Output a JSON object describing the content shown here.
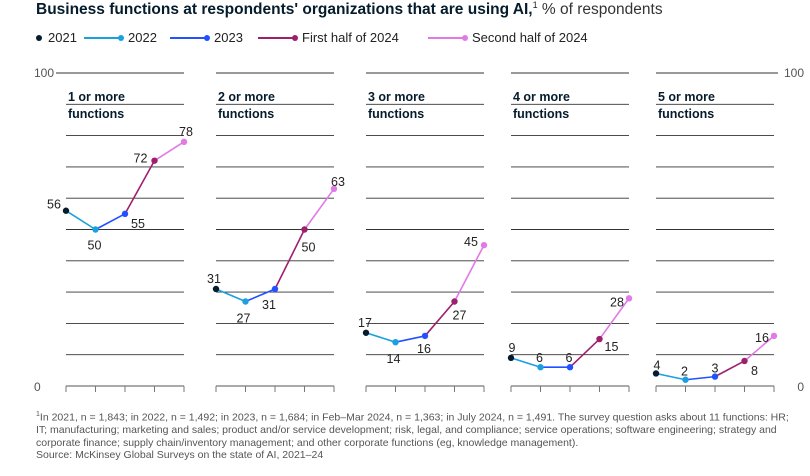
{
  "title": {
    "bold": "Business functions at respondents' organizations that are using AI,",
    "sup": "1",
    "unit": " % of respondents"
  },
  "legend": [
    {
      "label": "2021",
      "color": "#051c2c"
    },
    {
      "label": "2022",
      "color": "#1aa0e0"
    },
    {
      "label": "2023",
      "color": "#2251ff"
    },
    {
      "label": "First half of 2024",
      "color": "#9e1f6e"
    },
    {
      "label": "Second half of 2024",
      "color": "#e07ae6"
    }
  ],
  "chart_data": {
    "type": "line",
    "title": "Business functions at respondents' organizations that are using AI, % of respondents",
    "x": [
      "2021",
      "2022",
      "2023",
      "First half of 2024",
      "Second half of 2024"
    ],
    "ylim": [
      0,
      100
    ],
    "yticks": [
      "0",
      "100"
    ],
    "grid": true,
    "panels": [
      {
        "label_line1": "1 or more",
        "label_line2": "functions",
        "values": [
          56,
          50,
          55,
          72,
          78
        ],
        "labels": [
          "56",
          "50",
          "55",
          "72",
          "78"
        ]
      },
      {
        "label_line1": "2 or more",
        "label_line2": "functions",
        "values": [
          31,
          27,
          31,
          50,
          63
        ],
        "labels": [
          "31",
          "27",
          "31",
          "50",
          "63"
        ]
      },
      {
        "label_line1": "3 or more",
        "label_line2": "functions",
        "values": [
          17,
          14,
          16,
          27,
          45
        ],
        "labels": [
          "17",
          "14",
          "16",
          "27",
          "45"
        ]
      },
      {
        "label_line1": "4 or more",
        "label_line2": "functions",
        "values": [
          9,
          6,
          6,
          15,
          28
        ],
        "labels": [
          "9",
          "6",
          "6",
          "15",
          "28"
        ]
      },
      {
        "label_line1": "5 or more",
        "label_line2": "functions",
        "values": [
          4,
          2,
          3,
          8,
          16
        ],
        "labels": [
          "4",
          "2",
          "3",
          "8",
          "16"
        ]
      }
    ]
  },
  "footnote": {
    "sup": "1",
    "text": "In 2021, n = 1,843; in 2022, n = 1,492; in 2023, n = 1,684; in Feb–Mar 2024, n = 1,363; in July 2024, n = 1,491. The survey question asks about 11 functions: HR; IT; manufacturing; marketing and sales; product and/or service development; risk, legal, and compliance; service operations; software engineering; strategy and corporate finance; supply chain/inventory management; and other corporate functions (eg, knowledge management).",
    "source": "Source: McKinsey Global Surveys on the state of AI, 2021–24"
  }
}
